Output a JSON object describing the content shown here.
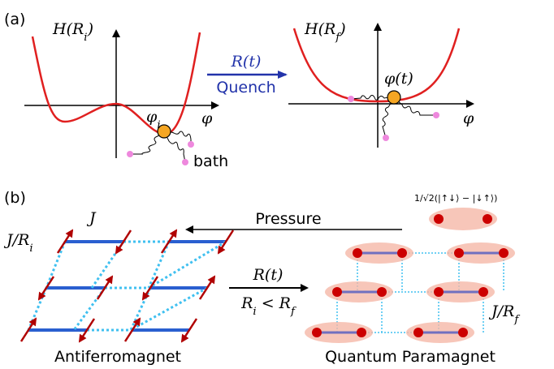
{
  "panel_a": {
    "label": "(a)",
    "left_energy_label": "H(R_i)",
    "left_field_label": "φ",
    "field_initial_label": "φ_i",
    "bath_label": "bath",
    "quench_top": "R(t)",
    "quench_bottom": "Quench",
    "right_energy_label": "H(R_f)",
    "field_time_label": "φ(t)",
    "right_field_label": "φ"
  },
  "panel_b": {
    "label": "(b)",
    "pressure_label": "Pressure",
    "singlet_label": "1/√2(|↑↓⟩ − |↓↑⟩)",
    "coupling_label": "J",
    "interchain_left_label": "J/R_i",
    "arrow_top": "R(t)",
    "arrow_bottom": "R_i < R_f",
    "interchain_right_label": "J/R_f",
    "left_phase": "Antiferromagnet",
    "right_phase": "Quantum Paramagnet"
  }
}
